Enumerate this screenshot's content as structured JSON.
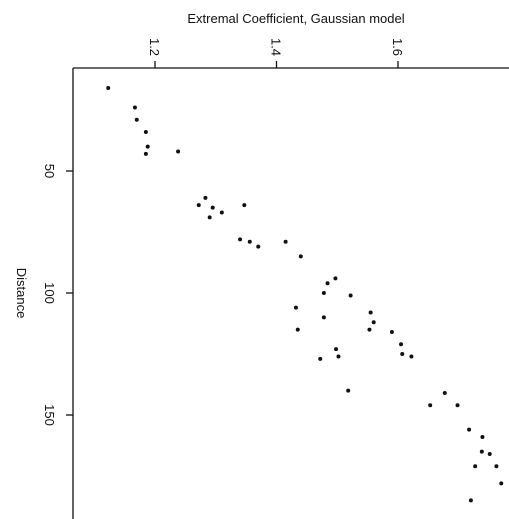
{
  "chart_data": {
    "type": "scatter",
    "title": "",
    "xlabel": "Extremal Coefficient, Gaussian model",
    "ylabel": "Distance",
    "x_ticks": [
      "1.2",
      "1.4",
      "1.6"
    ],
    "y_ticks": [
      "50",
      "100",
      "150"
    ],
    "xlim": [
      1.1,
      1.78
    ],
    "ylim": [
      14,
      192
    ],
    "y_reversed": true,
    "x_axis_position": "top",
    "grid": false,
    "legend": "none",
    "point_color": "#111111",
    "points": [
      {
        "x": 1.123,
        "y": 16
      },
      {
        "x": 1.167,
        "y": 24
      },
      {
        "x": 1.17,
        "y": 29
      },
      {
        "x": 1.185,
        "y": 34
      },
      {
        "x": 1.188,
        "y": 40
      },
      {
        "x": 1.185,
        "y": 43
      },
      {
        "x": 1.238,
        "y": 42
      },
      {
        "x": 1.272,
        "y": 64
      },
      {
        "x": 1.283,
        "y": 61
      },
      {
        "x": 1.29,
        "y": 69
      },
      {
        "x": 1.295,
        "y": 65
      },
      {
        "x": 1.31,
        "y": 67
      },
      {
        "x": 1.347,
        "y": 64
      },
      {
        "x": 1.34,
        "y": 78
      },
      {
        "x": 1.356,
        "y": 79
      },
      {
        "x": 1.37,
        "y": 81
      },
      {
        "x": 1.415,
        "y": 79
      },
      {
        "x": 1.44,
        "y": 85
      },
      {
        "x": 1.484,
        "y": 96
      },
      {
        "x": 1.497,
        "y": 94
      },
      {
        "x": 1.478,
        "y": 100
      },
      {
        "x": 1.432,
        "y": 106
      },
      {
        "x": 1.478,
        "y": 110
      },
      {
        "x": 1.435,
        "y": 115
      },
      {
        "x": 1.522,
        "y": 101
      },
      {
        "x": 1.555,
        "y": 108
      },
      {
        "x": 1.56,
        "y": 112
      },
      {
        "x": 1.553,
        "y": 115
      },
      {
        "x": 1.59,
        "y": 116
      },
      {
        "x": 1.605,
        "y": 121
      },
      {
        "x": 1.607,
        "y": 125
      },
      {
        "x": 1.622,
        "y": 126
      },
      {
        "x": 1.498,
        "y": 123
      },
      {
        "x": 1.502,
        "y": 126
      },
      {
        "x": 1.472,
        "y": 127
      },
      {
        "x": 1.518,
        "y": 140
      },
      {
        "x": 1.653,
        "y": 146
      },
      {
        "x": 1.677,
        "y": 141
      },
      {
        "x": 1.698,
        "y": 146
      },
      {
        "x": 1.717,
        "y": 156
      },
      {
        "x": 1.739,
        "y": 159
      },
      {
        "x": 1.738,
        "y": 165
      },
      {
        "x": 1.751,
        "y": 166
      },
      {
        "x": 1.762,
        "y": 171
      },
      {
        "x": 1.77,
        "y": 178
      },
      {
        "x": 1.727,
        "y": 171
      },
      {
        "x": 1.72,
        "y": 185
      }
    ]
  }
}
